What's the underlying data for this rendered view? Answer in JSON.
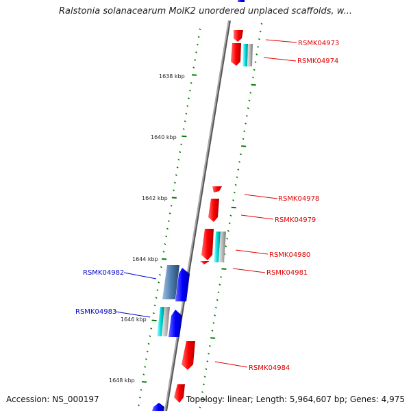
{
  "title": "Ralstonia solanacearum MolK2 unordered unplaced scaffolds, w...",
  "footer": {
    "accession": "Accession: NS_000197",
    "summary": "Topology: linear; Length: 5,964,607 bp; Genes: 4,975"
  },
  "colors": {
    "forward_gene": "#ff0000",
    "reverse_gene": "#0000ff",
    "forward_label": "#dd0000",
    "reverse_label": "#0000cc",
    "axis": "#888888",
    "ticks": "#007700",
    "cyan_feature": "#00dddd",
    "grey_feature": "#bbbbbb"
  },
  "scale_labels": [
    "1638 kbp",
    "1640 kbp",
    "1642 kbp",
    "1644 kbp",
    "1646 kbp",
    "1648 kbp"
  ],
  "gene_labels": {
    "forward": [
      "RSMK04973",
      "RSMK04974",
      "RSMK04978",
      "RSMK04979",
      "RSMK04980",
      "RSMK04981",
      "RSMK04984"
    ],
    "reverse": [
      "RSMK04982",
      "RSMK04983"
    ]
  }
}
